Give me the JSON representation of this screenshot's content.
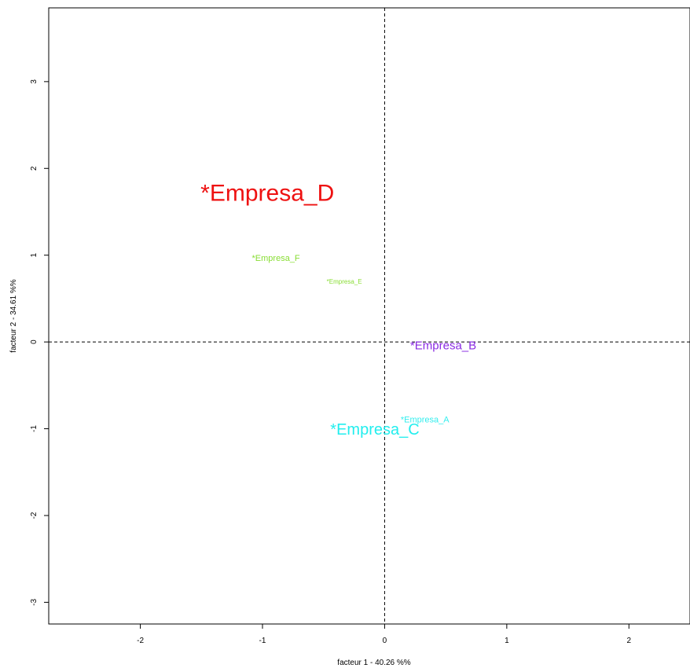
{
  "chart_data": {
    "type": "scatter",
    "title": "",
    "xlabel": "facteur  1  - 40.26 %%",
    "ylabel": "facteur  2  - 34.61 %%",
    "xlim": [
      -2.75,
      2.5
    ],
    "ylim": [
      -3.25,
      3.85
    ],
    "x_ticks": [
      -2,
      -1,
      0,
      1,
      2
    ],
    "y_ticks": [
      -3,
      -2,
      -1,
      0,
      1,
      2,
      3
    ],
    "reference_lines": {
      "x": 0,
      "y": 0,
      "style": "dashed"
    },
    "grid": false,
    "points": [
      {
        "label": "*Empresa_D",
        "x": -0.96,
        "y": 1.7,
        "color": "#ee1111",
        "size": "very large"
      },
      {
        "label": "*Empresa_F",
        "x": -0.89,
        "y": 0.96,
        "color": "#88dd33",
        "size": "small"
      },
      {
        "label": "*Empresa_E",
        "x": -0.33,
        "y": 0.69,
        "color": "#88dd33",
        "size": "tiny"
      },
      {
        "label": "*Empresa_B",
        "x": 0.48,
        "y": -0.05,
        "color": "#8a2be2",
        "size": "medium"
      },
      {
        "label": "*Empresa_A",
        "x": 0.33,
        "y": -0.9,
        "color": "#33eeee",
        "size": "small"
      },
      {
        "label": "*Empresa_C",
        "x": -0.08,
        "y": -1.02,
        "color": "#22eeee",
        "size": "large"
      }
    ]
  }
}
